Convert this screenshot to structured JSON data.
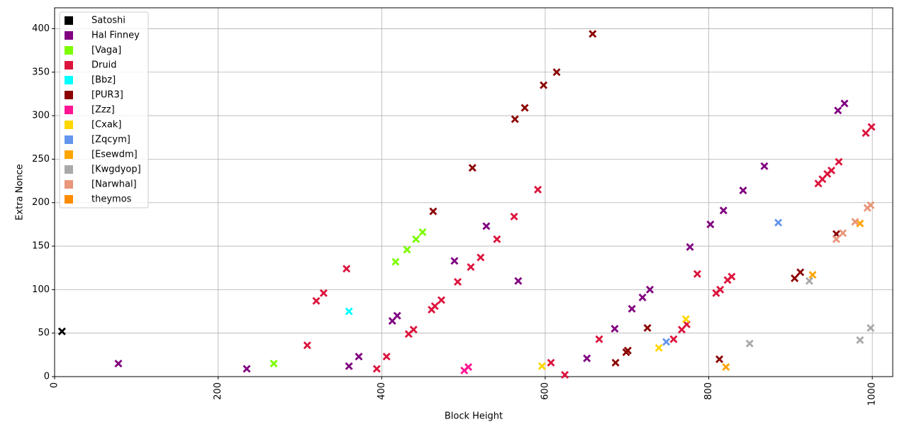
{
  "chart_data": {
    "type": "scatter",
    "x_label": "Block Height",
    "y_label": "Extra Nonce",
    "xlim": [
      0,
      1025
    ],
    "ylim": [
      0,
      424
    ],
    "xticks": [
      0,
      200,
      400,
      600,
      800,
      1000
    ],
    "yticks": [
      0,
      50,
      100,
      150,
      200,
      250,
      300,
      350,
      400
    ],
    "grid": true,
    "legend": "upper left",
    "series": [
      {
        "name": "Satoshi",
        "color": "#000000",
        "x": [
          9
        ],
        "values": [
          52
        ]
      },
      {
        "name": "Hal Finney",
        "color": "#800080",
        "x": [
          78,
          235,
          360,
          372,
          413,
          419,
          489,
          528,
          567,
          651,
          685,
          706,
          719,
          728,
          777,
          802,
          818,
          842,
          868,
          958,
          966
        ],
        "values": [
          15,
          9,
          12,
          23,
          64,
          70,
          133,
          173,
          110,
          21,
          55,
          78,
          91,
          100,
          149,
          175,
          191,
          214,
          242,
          306,
          314
        ]
      },
      {
        "name": "[Vaga]",
        "color": "#7CFC00",
        "x": [
          268,
          417,
          431,
          442,
          450
        ],
        "values": [
          15,
          132,
          146,
          158,
          166
        ]
      },
      {
        "name": "Druid",
        "color": "#DC143C",
        "x": [
          309,
          320,
          329,
          357,
          394,
          406,
          433,
          439,
          461,
          465,
          473,
          493,
          509,
          521,
          541,
          562,
          591,
          607,
          624,
          666,
          757,
          767,
          773,
          786,
          809,
          814,
          823,
          828,
          934,
          939,
          945,
          950,
          959,
          992,
          999
        ],
        "values": [
          36,
          87,
          96,
          124,
          9,
          23,
          49,
          54,
          77,
          81,
          88,
          109,
          126,
          137,
          158,
          184,
          215,
          16,
          2,
          43,
          43,
          54,
          60,
          118,
          96,
          100,
          111,
          115,
          222,
          227,
          233,
          237,
          247,
          280,
          287
        ]
      },
      {
        "name": "[Bbz]",
        "color": "#00FFFF",
        "x": [
          360
        ],
        "values": [
          75
        ]
      },
      {
        "name": "[PUR3]",
        "color": "#8B0000",
        "x": [
          463,
          511,
          563,
          575,
          598,
          614,
          658,
          686,
          699,
          701,
          725,
          813,
          905,
          912,
          956
        ],
        "values": [
          190,
          240,
          296,
          309,
          335,
          350,
          394,
          16,
          28,
          30,
          56,
          20,
          113,
          120,
          164
        ]
      },
      {
        "name": "[Zzz]",
        "color": "#FF1493",
        "x": [
          501,
          506
        ],
        "values": [
          7,
          11
        ]
      },
      {
        "name": "[Cxak]",
        "color": "#FFD700",
        "x": [
          596,
          739,
          772
        ],
        "values": [
          12,
          33,
          66
        ]
      },
      {
        "name": "[Zqcym]",
        "color": "#6495ED",
        "x": [
          748,
          885
        ],
        "values": [
          40,
          177
        ]
      },
      {
        "name": "[Esewdm]",
        "color": "#FFA500",
        "x": [
          821,
          927,
          985
        ],
        "values": [
          11,
          117,
          176
        ]
      },
      {
        "name": "[Kwgdyop]",
        "color": "#A9A9A9",
        "x": [
          850,
          923,
          985,
          998
        ],
        "values": [
          38,
          110,
          42,
          56
        ]
      },
      {
        "name": "[Narwhal]",
        "color": "#E9967A",
        "x": [
          956,
          964,
          979,
          994,
          998
        ],
        "values": [
          158,
          165,
          178,
          194,
          197
        ]
      },
      {
        "name": "theymos",
        "color": "#FF8C00",
        "x": [],
        "values": []
      }
    ]
  }
}
